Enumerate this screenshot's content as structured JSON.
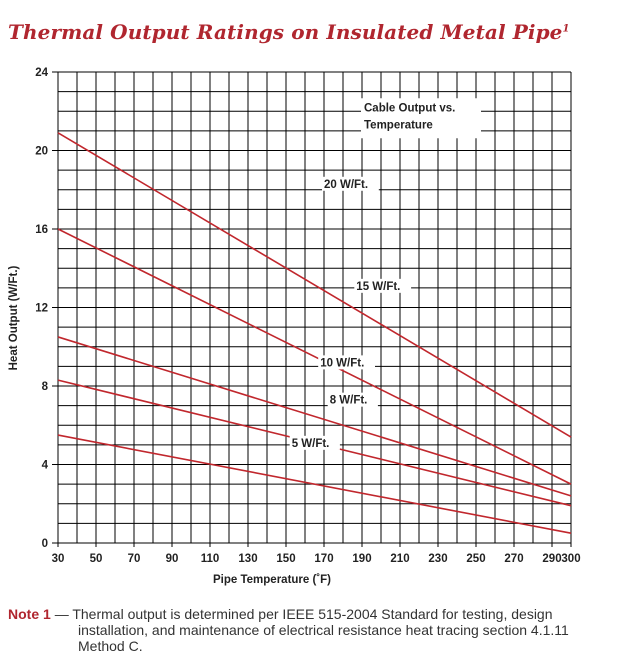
{
  "title": "Thermal Output Ratings on Insulated Metal Pipe",
  "title_footnote": "1",
  "note": {
    "label": "Note 1",
    "dash": "—",
    "line1": "Thermal output is determined per IEEE 515-2004 Standard for testing, design",
    "line2": "installation, and maintenance of electrical resistance heat tracing section 4.1.11",
    "line3": "Method C."
  },
  "colors": {
    "title": "#b0262f",
    "series": "#c1272d",
    "grid": "#000000"
  },
  "chart_data": {
    "type": "line",
    "xlabel": "Pipe Temperature (˚F)",
    "ylabel": "Heat Output (W/Ft.)",
    "xlim": [
      30,
      300
    ],
    "ylim": [
      0,
      24
    ],
    "xticks": [
      30,
      50,
      70,
      90,
      110,
      130,
      150,
      170,
      190,
      210,
      230,
      250,
      270,
      290,
      300
    ],
    "yticks": [
      0,
      4,
      8,
      12,
      16,
      20,
      24
    ],
    "x_minor_step": 10,
    "y_minor_step": 1,
    "grid": true,
    "annotation": [
      "Cable Output vs.",
      "Temperature"
    ],
    "series": [
      {
        "name": "20 W/Ft.",
        "x": [
          30,
          300
        ],
        "y": [
          20.9,
          5.4
        ],
        "label_at": [
          170,
          18.1
        ]
      },
      {
        "name": "15 W/Ft.",
        "x": [
          30,
          300
        ],
        "y": [
          16.0,
          3.0
        ],
        "label_at": [
          187,
          12.9
        ]
      },
      {
        "name": "10 W/Ft.",
        "x": [
          30,
          300
        ],
        "y": [
          10.5,
          2.4
        ],
        "label_at": [
          168,
          9.0
        ]
      },
      {
        "name": "8 W/Ft.",
        "x": [
          30,
          300
        ],
        "y": [
          8.3,
          1.9
        ],
        "label_at": [
          173,
          7.1
        ]
      },
      {
        "name": "5 W/Ft.",
        "x": [
          30,
          300
        ],
        "y": [
          5.5,
          0.5
        ],
        "label_at": [
          153,
          4.9
        ]
      }
    ]
  }
}
